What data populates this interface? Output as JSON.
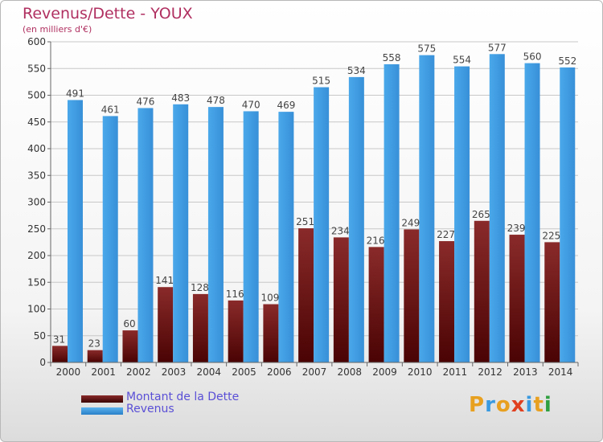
{
  "header": {
    "title": "Revenus/Dette - YOUX",
    "subtitle": "(en milliers d'€)"
  },
  "colors": {
    "debt": "#7a1515",
    "debt_dark": "#4a0505",
    "revenue": "#3a9ae0",
    "revenue_dark": "#2a80c8",
    "grid": "#c8c8c8",
    "axis_text": "#333333",
    "title": "#b03060",
    "legend_text": "#5a4fd6"
  },
  "chart_data": {
    "type": "bar",
    "title": "Revenus/Dette - YOUX",
    "subtitle": "(en milliers d'€)",
    "categories": [
      "2000",
      "2001",
      "2002",
      "2003",
      "2004",
      "2005",
      "2006",
      "2007",
      "2008",
      "2009",
      "2010",
      "2011",
      "2012",
      "2013",
      "2014"
    ],
    "series": [
      {
        "name": "Montant de la Dette",
        "values": [
          31,
          23,
          60,
          141,
          128,
          116,
          109,
          251,
          234,
          216,
          249,
          227,
          265,
          239,
          225
        ]
      },
      {
        "name": "Revenus",
        "values": [
          491,
          461,
          476,
          483,
          478,
          470,
          469,
          515,
          534,
          558,
          575,
          554,
          577,
          560,
          552
        ]
      }
    ],
    "ylim": [
      0,
      600
    ],
    "yticks": [
      0,
      50,
      100,
      150,
      200,
      250,
      300,
      350,
      400,
      450,
      500,
      550,
      600
    ],
    "grid": true,
    "legend_position": "bottom-left"
  },
  "legend": [
    {
      "label": "Montant de la Dette",
      "color": "#6a0f0f"
    },
    {
      "label": "Revenus",
      "color": "#3a9ae0"
    }
  ],
  "logo": {
    "letters": [
      "P",
      "r",
      "o",
      "x",
      "i",
      "t",
      "i"
    ],
    "colors": [
      "#e8a020",
      "#3a9ae0",
      "#e8a020",
      "#e04020",
      "#3a9ae0",
      "#e8a020",
      "#30a040"
    ]
  }
}
